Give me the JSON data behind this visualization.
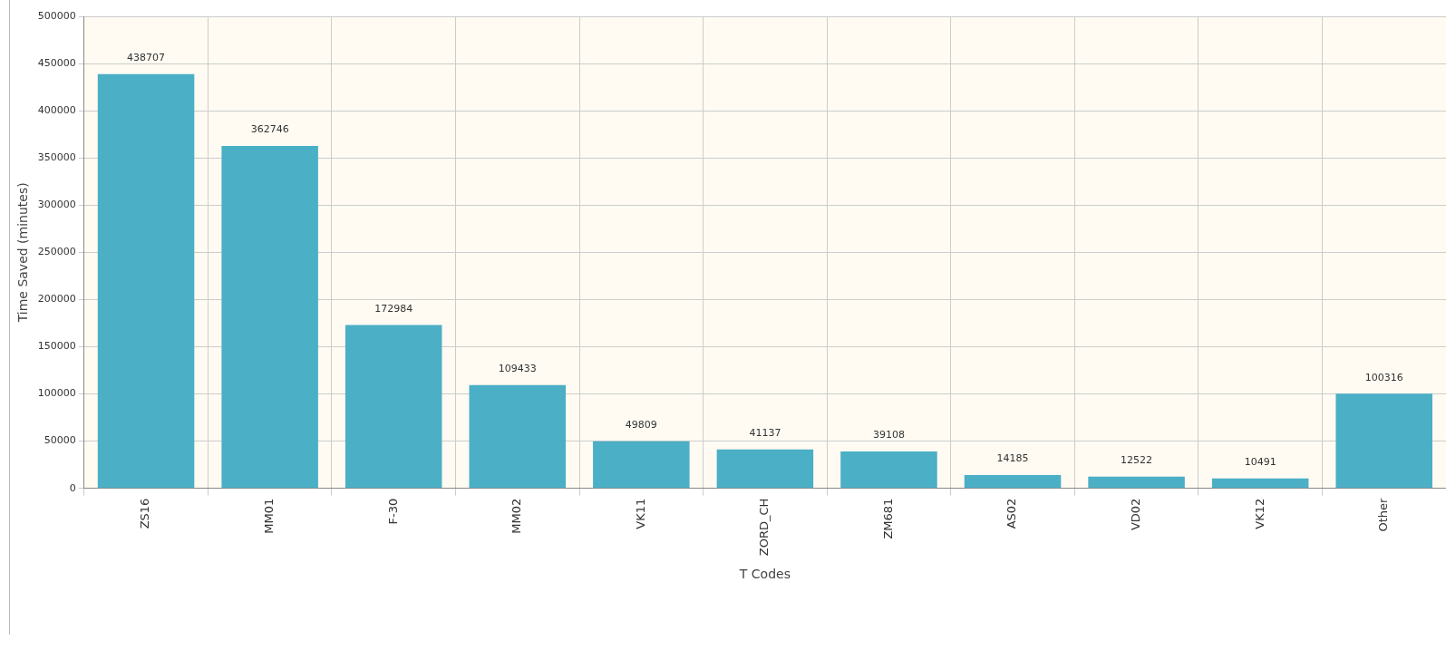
{
  "chart_data": {
    "type": "bar",
    "xlabel": "T Codes",
    "ylabel": "Time Saved (minutes)",
    "categories": [
      "ZS16",
      "MM01",
      "F-30",
      "MM02",
      "VK11",
      "ZORD_CH",
      "ZM681",
      "AS02",
      "VD02",
      "VK12",
      "Other"
    ],
    "values": [
      438707,
      362746,
      172984,
      109433,
      49809,
      41137,
      39108,
      14185,
      12522,
      10491,
      100316
    ],
    "color": "#4bafc6",
    "ylim": [
      0,
      500000
    ],
    "yticks": [
      0,
      50000,
      100000,
      150000,
      200000,
      250000,
      300000,
      350000,
      400000,
      450000,
      500000
    ],
    "grid": true,
    "data_labels": true
  }
}
